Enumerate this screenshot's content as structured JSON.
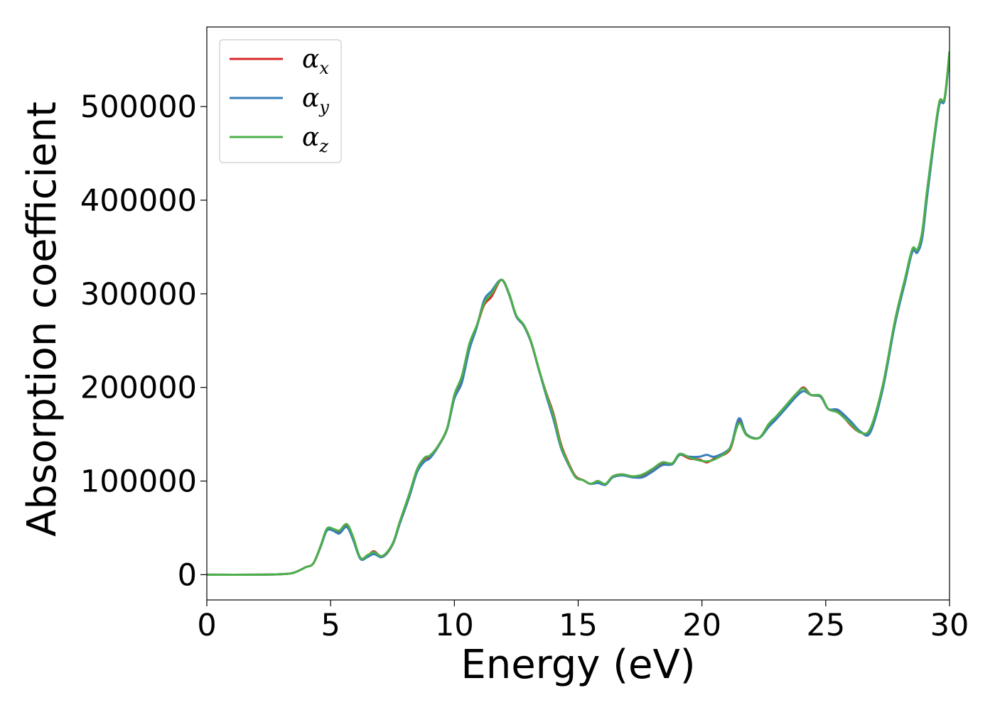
{
  "chart_data": {
    "type": "line",
    "title": "",
    "xlabel": "Energy (eV)",
    "ylabel": "Absorption coefficient",
    "xlim": [
      0,
      30
    ],
    "ylim": [
      -27000,
      585000
    ],
    "x_ticks": [
      "0",
      "5",
      "10",
      "15",
      "20",
      "25",
      "30"
    ],
    "y_ticks": [
      "0",
      "100000",
      "200000",
      "300000",
      "400000",
      "500000"
    ],
    "grid": false,
    "legend_position": "top-left",
    "series": [
      {
        "name": "α",
        "subscript": "x",
        "color": "#d62728",
        "points": [
          [
            0,
            0
          ],
          [
            2,
            0
          ],
          [
            3,
            500
          ],
          [
            3.5,
            2000
          ],
          [
            4,
            8000
          ],
          [
            4.3,
            12000
          ],
          [
            4.6,
            30000
          ],
          [
            4.85,
            48000
          ],
          [
            5.1,
            48000
          ],
          [
            5.35,
            46000
          ],
          [
            5.65,
            53000
          ],
          [
            5.9,
            40000
          ],
          [
            6.2,
            18000
          ],
          [
            6.5,
            20000
          ],
          [
            6.75,
            25000
          ],
          [
            7.1,
            19000
          ],
          [
            7.5,
            32000
          ],
          [
            7.8,
            55000
          ],
          [
            8.2,
            85000
          ],
          [
            8.5,
            112000
          ],
          [
            8.8,
            124000
          ],
          [
            9.0,
            125000
          ],
          [
            9.3,
            135000
          ],
          [
            9.7,
            155000
          ],
          [
            10.0,
            190000
          ],
          [
            10.3,
            210000
          ],
          [
            10.6,
            245000
          ],
          [
            10.9,
            265000
          ],
          [
            11.2,
            288000
          ],
          [
            11.5,
            297000
          ],
          [
            11.9,
            315000
          ],
          [
            12.2,
            300000
          ],
          [
            12.5,
            276000
          ],
          [
            12.8,
            266000
          ],
          [
            13.1,
            248000
          ],
          [
            13.4,
            220000
          ],
          [
            13.7,
            195000
          ],
          [
            14.0,
            172000
          ],
          [
            14.3,
            140000
          ],
          [
            14.6,
            120000
          ],
          [
            14.9,
            105000
          ],
          [
            15.2,
            101000
          ],
          [
            15.5,
            97000
          ],
          [
            15.8,
            100000
          ],
          [
            16.1,
            96000
          ],
          [
            16.4,
            105000
          ],
          [
            16.8,
            107000
          ],
          [
            17.2,
            104000
          ],
          [
            17.6,
            106000
          ],
          [
            18.0,
            112000
          ],
          [
            18.4,
            119000
          ],
          [
            18.8,
            118000
          ],
          [
            19.1,
            128000
          ],
          [
            19.5,
            124000
          ],
          [
            19.9,
            123000
          ],
          [
            20.2,
            120000
          ],
          [
            20.5,
            124000
          ],
          [
            21.0,
            130000
          ],
          [
            21.2,
            138000
          ],
          [
            21.5,
            164000
          ],
          [
            21.8,
            150000
          ],
          [
            22.3,
            146000
          ],
          [
            22.7,
            160000
          ],
          [
            23.0,
            168000
          ],
          [
            23.4,
            180000
          ],
          [
            23.8,
            192000
          ],
          [
            24.1,
            200000
          ],
          [
            24.4,
            192000
          ],
          [
            24.8,
            190000
          ],
          [
            25.1,
            177000
          ],
          [
            25.5,
            175000
          ],
          [
            26.0,
            160000
          ],
          [
            26.4,
            152000
          ],
          [
            26.8,
            155000
          ],
          [
            27.3,
            200000
          ],
          [
            27.8,
            270000
          ],
          [
            28.2,
            315000
          ],
          [
            28.5,
            345000
          ],
          [
            28.7,
            346000
          ],
          [
            28.9,
            365000
          ],
          [
            29.1,
            410000
          ],
          [
            29.4,
            470000
          ],
          [
            29.6,
            505000
          ],
          [
            29.8,
            508000
          ],
          [
            30.0,
            558000
          ]
        ]
      },
      {
        "name": "α",
        "subscript": "y",
        "color": "#377eb8",
        "points": [
          [
            0,
            0
          ],
          [
            2,
            0
          ],
          [
            3,
            500
          ],
          [
            3.5,
            2000
          ],
          [
            4,
            8000
          ],
          [
            4.3,
            12000
          ],
          [
            4.6,
            30000
          ],
          [
            4.85,
            47000
          ],
          [
            5.1,
            47000
          ],
          [
            5.35,
            44000
          ],
          [
            5.65,
            51000
          ],
          [
            5.9,
            38000
          ],
          [
            6.2,
            17000
          ],
          [
            6.5,
            19000
          ],
          [
            6.75,
            22000
          ],
          [
            7.1,
            19000
          ],
          [
            7.5,
            32000
          ],
          [
            7.8,
            55000
          ],
          [
            8.2,
            85000
          ],
          [
            8.5,
            110000
          ],
          [
            8.8,
            121000
          ],
          [
            9.0,
            124000
          ],
          [
            9.3,
            135000
          ],
          [
            9.7,
            155000
          ],
          [
            10.0,
            188000
          ],
          [
            10.3,
            205000
          ],
          [
            10.6,
            240000
          ],
          [
            10.9,
            264000
          ],
          [
            11.2,
            293000
          ],
          [
            11.5,
            303000
          ],
          [
            11.9,
            315000
          ],
          [
            12.2,
            300000
          ],
          [
            12.5,
            276000
          ],
          [
            12.8,
            266000
          ],
          [
            13.1,
            248000
          ],
          [
            13.4,
            220000
          ],
          [
            13.7,
            192000
          ],
          [
            14.0,
            166000
          ],
          [
            14.3,
            136000
          ],
          [
            14.6,
            118000
          ],
          [
            14.9,
            104000
          ],
          [
            15.2,
            101000
          ],
          [
            15.5,
            97000
          ],
          [
            15.8,
            98000
          ],
          [
            16.1,
            96000
          ],
          [
            16.4,
            104000
          ],
          [
            16.8,
            106000
          ],
          [
            17.2,
            104000
          ],
          [
            17.6,
            104000
          ],
          [
            18.0,
            110000
          ],
          [
            18.4,
            117000
          ],
          [
            18.8,
            118000
          ],
          [
            19.1,
            128000
          ],
          [
            19.5,
            126000
          ],
          [
            19.9,
            126000
          ],
          [
            20.2,
            128000
          ],
          [
            20.5,
            126000
          ],
          [
            21.0,
            132000
          ],
          [
            21.2,
            140000
          ],
          [
            21.5,
            167000
          ],
          [
            21.8,
            150000
          ],
          [
            22.3,
            146000
          ],
          [
            22.7,
            158000
          ],
          [
            23.0,
            166000
          ],
          [
            23.4,
            178000
          ],
          [
            23.8,
            190000
          ],
          [
            24.1,
            196000
          ],
          [
            24.4,
            192000
          ],
          [
            24.8,
            190000
          ],
          [
            25.1,
            177000
          ],
          [
            25.5,
            176000
          ],
          [
            26.0,
            164000
          ],
          [
            26.4,
            153000
          ],
          [
            26.8,
            152000
          ],
          [
            27.3,
            198000
          ],
          [
            27.8,
            268000
          ],
          [
            28.2,
            312000
          ],
          [
            28.5,
            345000
          ],
          [
            28.7,
            344000
          ],
          [
            28.9,
            360000
          ],
          [
            29.1,
            405000
          ],
          [
            29.4,
            468000
          ],
          [
            29.6,
            503000
          ],
          [
            29.8,
            507000
          ],
          [
            30.0,
            555000
          ]
        ]
      },
      {
        "name": "α",
        "subscript": "z",
        "color": "#4daf4a",
        "points": [
          [
            0,
            0
          ],
          [
            2,
            0
          ],
          [
            3,
            500
          ],
          [
            3.5,
            2000
          ],
          [
            4,
            8000
          ],
          [
            4.3,
            12000
          ],
          [
            4.6,
            31000
          ],
          [
            4.85,
            49000
          ],
          [
            5.1,
            49000
          ],
          [
            5.35,
            47000
          ],
          [
            5.65,
            54000
          ],
          [
            5.9,
            41000
          ],
          [
            6.2,
            18000
          ],
          [
            6.5,
            21000
          ],
          [
            6.75,
            24000
          ],
          [
            7.1,
            20000
          ],
          [
            7.5,
            33000
          ],
          [
            7.8,
            57000
          ],
          [
            8.2,
            88000
          ],
          [
            8.5,
            113000
          ],
          [
            8.8,
            125000
          ],
          [
            9.0,
            127000
          ],
          [
            9.3,
            136000
          ],
          [
            9.7,
            156000
          ],
          [
            10.0,
            192000
          ],
          [
            10.3,
            212000
          ],
          [
            10.6,
            246000
          ],
          [
            10.9,
            266000
          ],
          [
            11.2,
            290000
          ],
          [
            11.5,
            300000
          ],
          [
            11.9,
            315000
          ],
          [
            12.2,
            301000
          ],
          [
            12.5,
            277000
          ],
          [
            12.8,
            267000
          ],
          [
            13.1,
            249000
          ],
          [
            13.4,
            221000
          ],
          [
            13.7,
            194000
          ],
          [
            14.0,
            170000
          ],
          [
            14.3,
            138000
          ],
          [
            14.6,
            119000
          ],
          [
            14.9,
            104000
          ],
          [
            15.2,
            101000
          ],
          [
            15.5,
            97000
          ],
          [
            15.8,
            100000
          ],
          [
            16.1,
            97000
          ],
          [
            16.4,
            105000
          ],
          [
            16.8,
            107000
          ],
          [
            17.2,
            105000
          ],
          [
            17.6,
            107000
          ],
          [
            18.0,
            113000
          ],
          [
            18.4,
            120000
          ],
          [
            18.8,
            119000
          ],
          [
            19.1,
            129000
          ],
          [
            19.5,
            125000
          ],
          [
            19.9,
            122000
          ],
          [
            20.2,
            121000
          ],
          [
            20.5,
            123000
          ],
          [
            21.0,
            131000
          ],
          [
            21.2,
            139000
          ],
          [
            21.5,
            162000
          ],
          [
            21.8,
            149000
          ],
          [
            22.3,
            146000
          ],
          [
            22.7,
            161000
          ],
          [
            23.0,
            169000
          ],
          [
            23.4,
            181000
          ],
          [
            23.8,
            193000
          ],
          [
            24.1,
            199000
          ],
          [
            24.4,
            192000
          ],
          [
            24.8,
            191000
          ],
          [
            25.1,
            177000
          ],
          [
            25.5,
            173000
          ],
          [
            26.0,
            161000
          ],
          [
            26.4,
            152000
          ],
          [
            26.8,
            156000
          ],
          [
            27.3,
            202000
          ],
          [
            27.8,
            272000
          ],
          [
            28.2,
            316000
          ],
          [
            28.5,
            348000
          ],
          [
            28.7,
            347000
          ],
          [
            28.9,
            367000
          ],
          [
            29.1,
            412000
          ],
          [
            29.4,
            472000
          ],
          [
            29.6,
            506000
          ],
          [
            29.8,
            509000
          ],
          [
            30.0,
            559000
          ]
        ]
      }
    ]
  }
}
